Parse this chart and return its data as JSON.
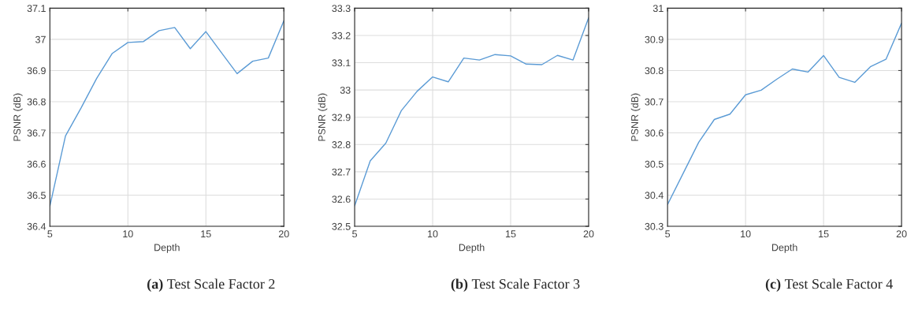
{
  "chart_data": [
    {
      "type": "line",
      "title": "(a) Test Scale Factor 2",
      "xlabel": "Depth",
      "ylabel": "PSNR (dB)",
      "x": [
        5,
        6,
        7,
        8,
        9,
        10,
        11,
        12,
        13,
        14,
        15,
        16,
        17,
        18,
        19,
        20
      ],
      "series": [
        {
          "color": "#5b9bd5",
          "values": [
            36.465,
            36.69,
            36.78,
            36.875,
            36.955,
            36.99,
            36.993,
            37.028,
            37.038,
            36.97,
            37.025,
            36.957,
            36.89,
            36.93,
            36.94,
            37.06
          ]
        }
      ],
      "xlim": [
        5,
        20
      ],
      "xticks": [
        5,
        10,
        15,
        20
      ],
      "ylim": [
        36.4,
        37.1
      ],
      "yticks": [
        36.4,
        36.5,
        36.6,
        36.7,
        36.8,
        36.9,
        37,
        37.1
      ],
      "grid": true
    },
    {
      "type": "line",
      "title": "(b) Test Scale Factor 3",
      "xlabel": "Depth",
      "ylabel": "PSNR (dB)",
      "x": [
        5,
        6,
        7,
        8,
        9,
        10,
        11,
        12,
        13,
        14,
        15,
        16,
        17,
        18,
        19,
        20
      ],
      "series": [
        {
          "color": "#5b9bd5",
          "values": [
            32.575,
            32.74,
            32.805,
            32.925,
            32.995,
            33.048,
            33.03,
            33.117,
            33.11,
            33.13,
            33.125,
            33.095,
            33.093,
            33.127,
            33.11,
            33.265
          ]
        }
      ],
      "xlim": [
        5,
        20
      ],
      "xticks": [
        5,
        10,
        15,
        20
      ],
      "ylim": [
        32.5,
        33.3
      ],
      "yticks": [
        32.5,
        32.6,
        32.7,
        32.8,
        32.9,
        33,
        33.1,
        33.2,
        33.3
      ],
      "grid": true
    },
    {
      "type": "line",
      "title": "(c) Test Scale Factor 4",
      "xlabel": "Depth",
      "ylabel": "PSNR (dB)",
      "x": [
        5,
        6,
        7,
        8,
        9,
        10,
        11,
        12,
        13,
        14,
        15,
        16,
        17,
        18,
        19,
        20
      ],
      "series": [
        {
          "color": "#5b9bd5",
          "values": [
            30.37,
            30.47,
            30.57,
            30.643,
            30.66,
            30.722,
            30.737,
            30.772,
            30.805,
            30.795,
            30.848,
            30.778,
            30.762,
            30.812,
            30.836,
            30.952
          ]
        }
      ],
      "xlim": [
        5,
        20
      ],
      "xticks": [
        5,
        10,
        15,
        20
      ],
      "ylim": [
        30.3,
        31
      ],
      "yticks": [
        30.3,
        30.4,
        30.5,
        30.6,
        30.7,
        30.8,
        30.9,
        31
      ],
      "grid": true
    }
  ]
}
